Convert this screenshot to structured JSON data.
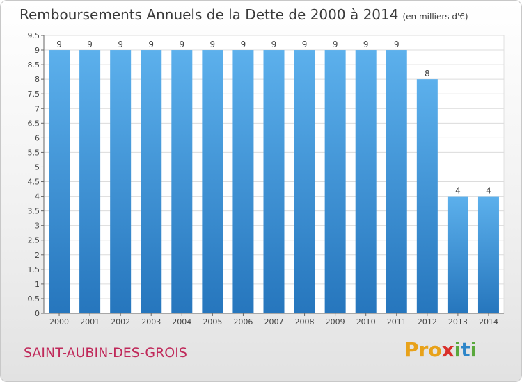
{
  "chart_data": {
    "type": "bar",
    "title": "Remboursements Annuels de la Dette de 2000 à 2014",
    "subtitle": "(en milliers d'€)",
    "categories": [
      "2000",
      "2001",
      "2002",
      "2003",
      "2004",
      "2005",
      "2006",
      "2007",
      "2008",
      "2009",
      "2010",
      "2011",
      "2012",
      "2013",
      "2014"
    ],
    "values": [
      9,
      9,
      9,
      9,
      9,
      9,
      9,
      9,
      9,
      9,
      9,
      9,
      8,
      4,
      4
    ],
    "data_labels": [
      "9",
      "9",
      "9",
      "9",
      "9",
      "9",
      "9",
      "9",
      "9",
      "9",
      "9",
      "9",
      "8",
      "4",
      "4"
    ],
    "yticks": [
      "0",
      "0.5",
      "1",
      "1.5",
      "2",
      "2.5",
      "3",
      "3.5",
      "4",
      "4.5",
      "5",
      "5.5",
      "6",
      "6.5",
      "7",
      "7.5",
      "8",
      "8.5",
      "9",
      "9.5"
    ],
    "ylim": [
      0,
      9.5
    ],
    "grid": true,
    "bar_color": "#3d95d9"
  },
  "footer": {
    "commune": "SAINT-AUBIN-DES-GROIS",
    "logo": {
      "p1": "Pro",
      "p2": "x",
      "p3": "i",
      "p4": "t",
      "p5": "i"
    }
  }
}
